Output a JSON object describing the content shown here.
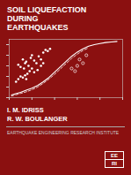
{
  "chart_data": {
    "type": "scatter",
    "title": "SOIL LIQUEFACTION\nDURING\nEARTHQUAKES",
    "annotations": [
      "I. M. IDRISS",
      "R. W. BOULANGER",
      "EARTHQUAKE ENGINEERING RESEARCH INSTITUTE",
      "EE",
      "RI"
    ],
    "xlim": [
      0,
      1
    ],
    "ylim": [
      0,
      1.1
    ],
    "xticks": [
      0,
      0.2,
      0.4,
      0.6,
      0.8,
      1.0
    ],
    "yticks": [
      0,
      0.2,
      0.4,
      0.6,
      0.8,
      1.0
    ],
    "tick_labels": false,
    "grid": false,
    "series": [
      {
        "type": "line",
        "line_style": "solid",
        "color": "#FFFFFF",
        "x": [
          0.02,
          0.05,
          0.1,
          0.15,
          0.2,
          0.25,
          0.3,
          0.35,
          0.4,
          0.45,
          0.5,
          0.55,
          0.6,
          0.65,
          0.7,
          0.75,
          0.8,
          0.85,
          0.9,
          0.95
        ],
        "values": [
          0.05,
          0.07,
          0.1,
          0.14,
          0.18,
          0.23,
          0.3,
          0.38,
          0.48,
          0.58,
          0.68,
          0.78,
          0.86,
          0.92,
          0.97,
          1.0,
          1.02,
          1.04,
          1.05,
          1.06
        ]
      },
      {
        "type": "line",
        "line_style": "dashed",
        "color": "#FFFFFF",
        "x": [
          0.02,
          0.05,
          0.1,
          0.15,
          0.2,
          0.25,
          0.3,
          0.35,
          0.4,
          0.45,
          0.5,
          0.55,
          0.6,
          0.65,
          0.7
        ],
        "values": [
          0.03,
          0.05,
          0.08,
          0.11,
          0.15,
          0.2,
          0.27,
          0.35,
          0.44,
          0.54,
          0.64,
          0.74,
          0.82,
          0.89,
          0.94
        ]
      },
      {
        "type": "scatter",
        "marker": "dot",
        "color": "#FFFFFF",
        "x": [
          0.08,
          0.1,
          0.12,
          0.14,
          0.13,
          0.15,
          0.17,
          0.19,
          0.2,
          0.22,
          0.24,
          0.26,
          0.28,
          0.3,
          0.32,
          0.18,
          0.16,
          0.2,
          0.22,
          0.25,
          0.1,
          0.12,
          0.14,
          0.08,
          0.06,
          0.28,
          0.3,
          0.34,
          0.36,
          0.15
        ],
        "values": [
          0.62,
          0.58,
          0.72,
          0.65,
          0.55,
          0.68,
          0.6,
          0.75,
          0.8,
          0.7,
          0.65,
          0.78,
          0.72,
          0.85,
          0.9,
          0.5,
          0.45,
          0.55,
          0.48,
          0.52,
          0.4,
          0.38,
          0.42,
          0.35,
          0.3,
          0.6,
          0.65,
          0.88,
          0.92,
          0.35
        ]
      },
      {
        "type": "scatter",
        "marker": "ring",
        "color": "#FFFFFF",
        "x": [
          0.55,
          0.6,
          0.65,
          0.58,
          0.62,
          0.68
        ],
        "values": [
          0.55,
          0.6,
          0.65,
          0.5,
          0.72,
          0.8
        ]
      }
    ]
  }
}
